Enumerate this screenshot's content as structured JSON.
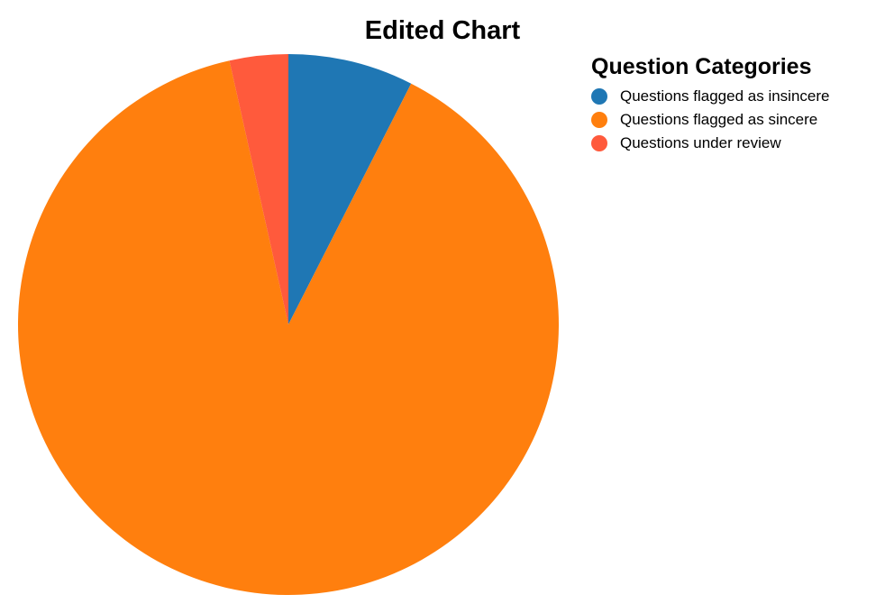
{
  "chart_data": {
    "type": "pie",
    "title": "Edited Chart",
    "legend": {
      "title": "Question Categories",
      "placement": "top-right"
    },
    "categories": [
      "Questions flagged as insincere",
      "Questions flagged as sincere",
      "Questions under review"
    ],
    "values": [
      7.5,
      89,
      3.5
    ],
    "colors": [
      "#1f77b4",
      "#ff7f0e",
      "#ff5a3c"
    ],
    "start_angle_deg": 0,
    "direction": "clockwise"
  }
}
